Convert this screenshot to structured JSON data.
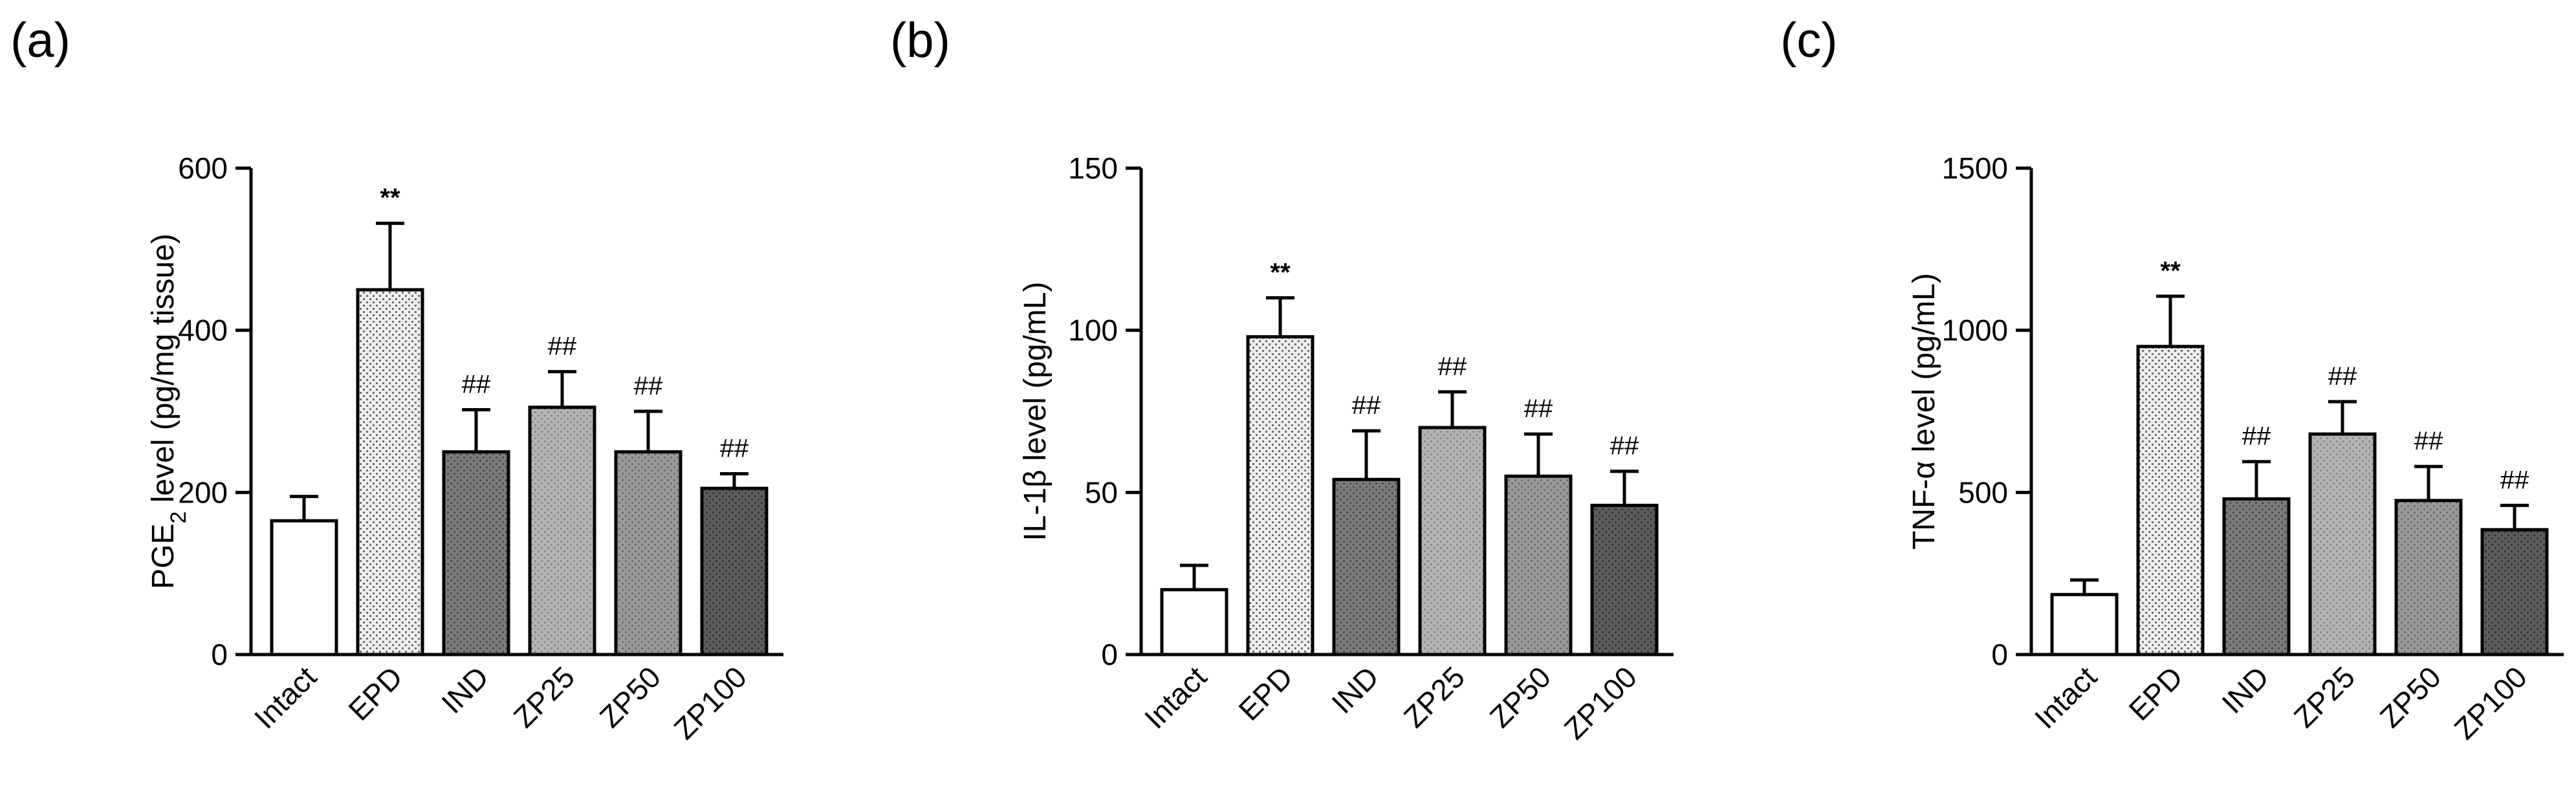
{
  "chart_data": [
    {
      "type": "bar",
      "panel_label": "(a)",
      "ylabel_prefix": "PGE",
      "ylabel_sub": "2",
      "ylabel_suffix": " level (pg/mg tissue)",
      "ylim": [
        0,
        600
      ],
      "yticks": [
        0,
        200,
        400,
        600
      ],
      "categories": [
        "Intact",
        "EPD",
        "IND",
        "ZP25",
        "ZP50",
        "ZP100"
      ],
      "values": [
        165,
        450,
        250,
        305,
        250,
        205
      ],
      "errors": [
        30,
        82,
        52,
        44,
        50,
        18
      ],
      "significance": [
        "",
        "**",
        "##",
        "##",
        "##",
        "##"
      ]
    },
    {
      "type": "bar",
      "panel_label": "(b)",
      "ylabel_prefix": "IL-1β level (pg/mL)",
      "ylabel_sub": "",
      "ylabel_suffix": "",
      "ylim": [
        0,
        150
      ],
      "yticks": [
        0,
        50,
        100,
        150
      ],
      "categories": [
        "Intact",
        "EPD",
        "IND",
        "ZP25",
        "ZP50",
        "ZP100"
      ],
      "values": [
        20,
        98,
        54,
        70,
        55,
        46
      ],
      "errors": [
        7.5,
        12,
        15,
        11,
        13,
        10.5
      ],
      "significance": [
        "",
        "**",
        "##",
        "##",
        "##",
        "##"
      ]
    },
    {
      "type": "bar",
      "panel_label": "(c)",
      "ylabel_prefix": "TNF-α level (pg/mL)",
      "ylabel_sub": "",
      "ylabel_suffix": "",
      "ylim": [
        0,
        1500
      ],
      "yticks": [
        0,
        500,
        1000,
        1500
      ],
      "categories": [
        "Intact",
        "EPD",
        "IND",
        "ZP25",
        "ZP50",
        "ZP100"
      ],
      "values": [
        185,
        950,
        480,
        680,
        475,
        385
      ],
      "errors": [
        45,
        155,
        115,
        100,
        105,
        75
      ],
      "significance": [
        "",
        "**",
        "##",
        "##",
        "##",
        "##"
      ]
    }
  ],
  "colors": {
    "axis": "#000000",
    "bar_fills": [
      "#ffffff",
      "#eeeeee",
      "#7c7c7c",
      "#b4b4b4",
      "#9a9a9a",
      "#5c5c5c"
    ],
    "bar_dots": [
      "none",
      "#666666",
      "#4a4a4a",
      "#888888",
      "#6c6c6c",
      "#333333"
    ]
  }
}
